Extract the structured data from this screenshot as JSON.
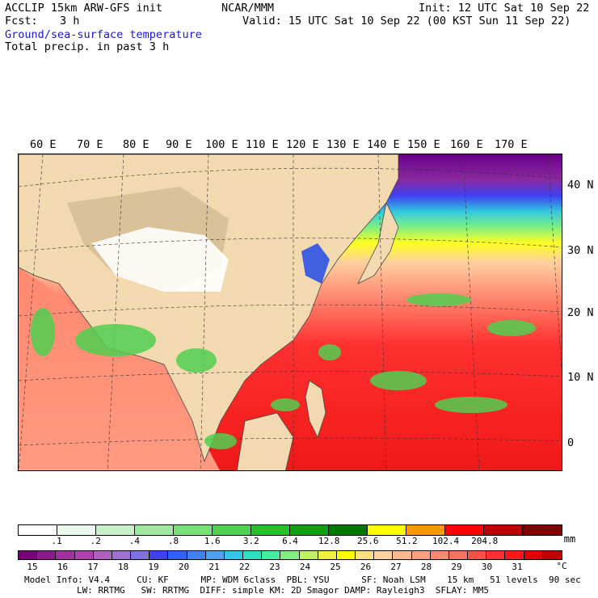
{
  "header": {
    "model": "ACCLIP 15km ARW-GFS init",
    "org": "NCAR/MMM",
    "init": "Init: 12 UTC Sat 10 Sep 22",
    "fcst_label": "Fcst:",
    "fcst_value": "3 h",
    "valid": "Valid: 15 UTC Sat 10 Sep 22 (00 KST Sun 11 Sep 22)",
    "field1": "Ground/sea-surface temperature",
    "field2": "Total precip. in past 3 h"
  },
  "map": {
    "lon_labels": [
      "60 E",
      "70 E",
      "80 E",
      "90 E",
      "100 E",
      "110 E",
      "120 E",
      "130 E",
      "140 E",
      "150 E",
      "160 E",
      "170 E"
    ],
    "lat_labels": [
      "40 N",
      "30 N",
      "20 N",
      "10 N",
      "0"
    ]
  },
  "precip_scale": {
    "colors": [
      "#ffffff",
      "#e8f8ec",
      "#c8f0c8",
      "#a0e8a0",
      "#78e078",
      "#50d050",
      "#28c028",
      "#10a010",
      "#007800",
      "#ffff00",
      "#ff9900",
      "#ff0000",
      "#c00000",
      "#800000"
    ],
    "labels": [
      ".1",
      ".2",
      ".4",
      ".8",
      "1.6",
      "3.2",
      "6.4",
      "12.8",
      "25.6",
      "51.2",
      "102.4",
      "204.8"
    ],
    "unit": "mm"
  },
  "temp_scale": {
    "colors": [
      "#7a007a",
      "#8c1a8c",
      "#a030a0",
      "#b040b0",
      "#b060c0",
      "#a070d0",
      "#8070e0",
      "#4040f0",
      "#3060ff",
      "#4080ff",
      "#50a0f0",
      "#30c8e8",
      "#30e0c0",
      "#40f0a0",
      "#80f080",
      "#c0f060",
      "#f0f040",
      "#ffff00",
      "#ffe080",
      "#ffd0a0",
      "#ffb890",
      "#ffa080",
      "#ff8870",
      "#ff7060",
      "#ff5048",
      "#ff3030",
      "#ff1818",
      "#e00000",
      "#c00000"
    ],
    "labels": [
      "15",
      "16",
      "17",
      "18",
      "19",
      "20",
      "21",
      "22",
      "23",
      "24",
      "25",
      "26",
      "27",
      "28",
      "29",
      "30",
      "31"
    ],
    "unit": "°C"
  },
  "footer": {
    "line1": "Model Info: V4.4     CU: KF      MP: WDM 6class  PBL: YSU      SF: Noah LSM    15 km   51 levels  90 sec",
    "line2": "LW: RRTMG   SW: RRTMG  DIFF: simple KM: 2D Smagor DAMP: Rayleigh3  SFLAY: MM5"
  }
}
